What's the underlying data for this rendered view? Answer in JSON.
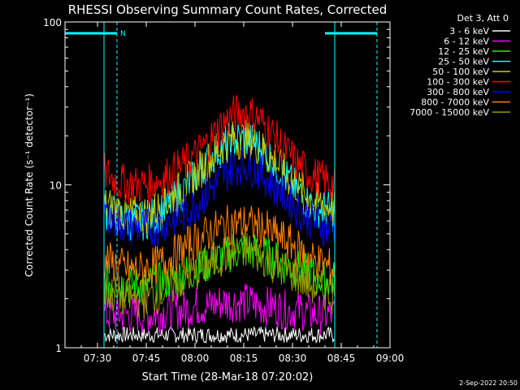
{
  "chart_data": {
    "type": "line",
    "title": "RHESSI Observing Summary Count Rates, Corrected",
    "xlabel": "Start Time (28-Mar-18 07:20:02)",
    "ylabel": "Corrected Count Rate (s⁻¹ detector⁻¹)",
    "yscale": "log",
    "xlim": [
      "07:20",
      "09:00"
    ],
    "ylim": [
      1,
      100
    ],
    "x_ticks": [
      "07:30",
      "07:45",
      "08:00",
      "08:15",
      "08:30",
      "08:45",
      "09:00"
    ],
    "y_ticks": [
      "1",
      "10",
      "100"
    ],
    "legend_title": "Det 3, Att 0",
    "legend_position": "right",
    "footer_date": "2-Sep-2022 20:50",
    "annotations": {
      "night_marker": "N",
      "night_intervals": [
        [
          "07:20",
          "07:36"
        ],
        [
          "08:40",
          "08:56"
        ]
      ],
      "data_window": [
        "07:32",
        "08:43"
      ]
    },
    "x": [
      "07:32",
      "07:36",
      "07:40",
      "07:44",
      "07:48",
      "07:52",
      "07:56",
      "08:00",
      "08:04",
      "08:08",
      "08:12",
      "08:16",
      "08:20",
      "08:24",
      "08:28",
      "08:32",
      "08:36",
      "08:40",
      "08:43"
    ],
    "series": [
      {
        "name": "3 - 6 keV",
        "color": "#ffffff",
        "values": [
          1.2,
          1.2,
          1.2,
          1.2,
          1.2,
          1.2,
          1.2,
          1.2,
          1.2,
          1.2,
          1.2,
          1.2,
          1.2,
          1.2,
          1.2,
          1.2,
          1.2,
          1.2,
          1.2
        ]
      },
      {
        "name": "6 - 12 keV",
        "color": "#ff00ff",
        "values": [
          1.6,
          1.6,
          1.6,
          1.6,
          1.6,
          1.7,
          1.7,
          1.8,
          1.8,
          1.9,
          1.9,
          1.9,
          1.8,
          1.8,
          1.7,
          1.7,
          1.6,
          1.6,
          1.6
        ]
      },
      {
        "name": "12 - 25 keV",
        "color": "#00ff00",
        "values": [
          2.6,
          2.5,
          2.4,
          2.4,
          2.5,
          2.6,
          2.8,
          3.0,
          3.3,
          3.6,
          3.9,
          4.0,
          3.8,
          3.5,
          3.2,
          3.0,
          2.8,
          2.6,
          2.6
        ]
      },
      {
        "name": "25 - 50 keV",
        "color": "#00ffff",
        "values": [
          7.0,
          6.5,
          6.0,
          6.0,
          6.5,
          7.5,
          9.0,
          11,
          14,
          17,
          19,
          19,
          17,
          14,
          11,
          9,
          7.5,
          7.0,
          6.8
        ]
      },
      {
        "name": "50 - 100 keV",
        "color": "#cccc00",
        "values": [
          7.5,
          7.0,
          6.5,
          6.5,
          7.0,
          8.0,
          9.5,
          11.5,
          14,
          17,
          19,
          19,
          17,
          14,
          11.5,
          9.5,
          8.0,
          7.5,
          7.2
        ]
      },
      {
        "name": "100 - 300 keV",
        "color": "#ff0000",
        "values": [
          12,
          10.5,
          10,
          10,
          10.5,
          11.5,
          13,
          15,
          18,
          23,
          27,
          28,
          25,
          20,
          16,
          13,
          11.5,
          10.5,
          10
        ]
      },
      {
        "name": "300 - 800 keV",
        "color": "#0000ff",
        "values": [
          7.0,
          6.0,
          5.5,
          5.5,
          5.5,
          6.0,
          6.5,
          7.5,
          9,
          11,
          13,
          13.5,
          12,
          10,
          8.5,
          7.0,
          6.0,
          5.5,
          5.5
        ]
      },
      {
        "name": "800 - 7000 keV",
        "color": "#ff8000",
        "values": [
          3.5,
          3.2,
          3.0,
          3.0,
          3.2,
          3.5,
          4.0,
          4.5,
          5.0,
          5.5,
          5.8,
          5.8,
          5.5,
          5.0,
          4.5,
          4.0,
          3.5,
          3.2,
          3.0
        ]
      },
      {
        "name": "7000 - 15000 keV",
        "color": "#999900",
        "values": [
          2.2,
          2.1,
          2.0,
          2.0,
          2.1,
          2.3,
          2.6,
          2.9,
          3.2,
          3.6,
          3.9,
          4.0,
          3.7,
          3.3,
          3.0,
          2.7,
          2.4,
          2.2,
          2.1
        ]
      }
    ]
  }
}
